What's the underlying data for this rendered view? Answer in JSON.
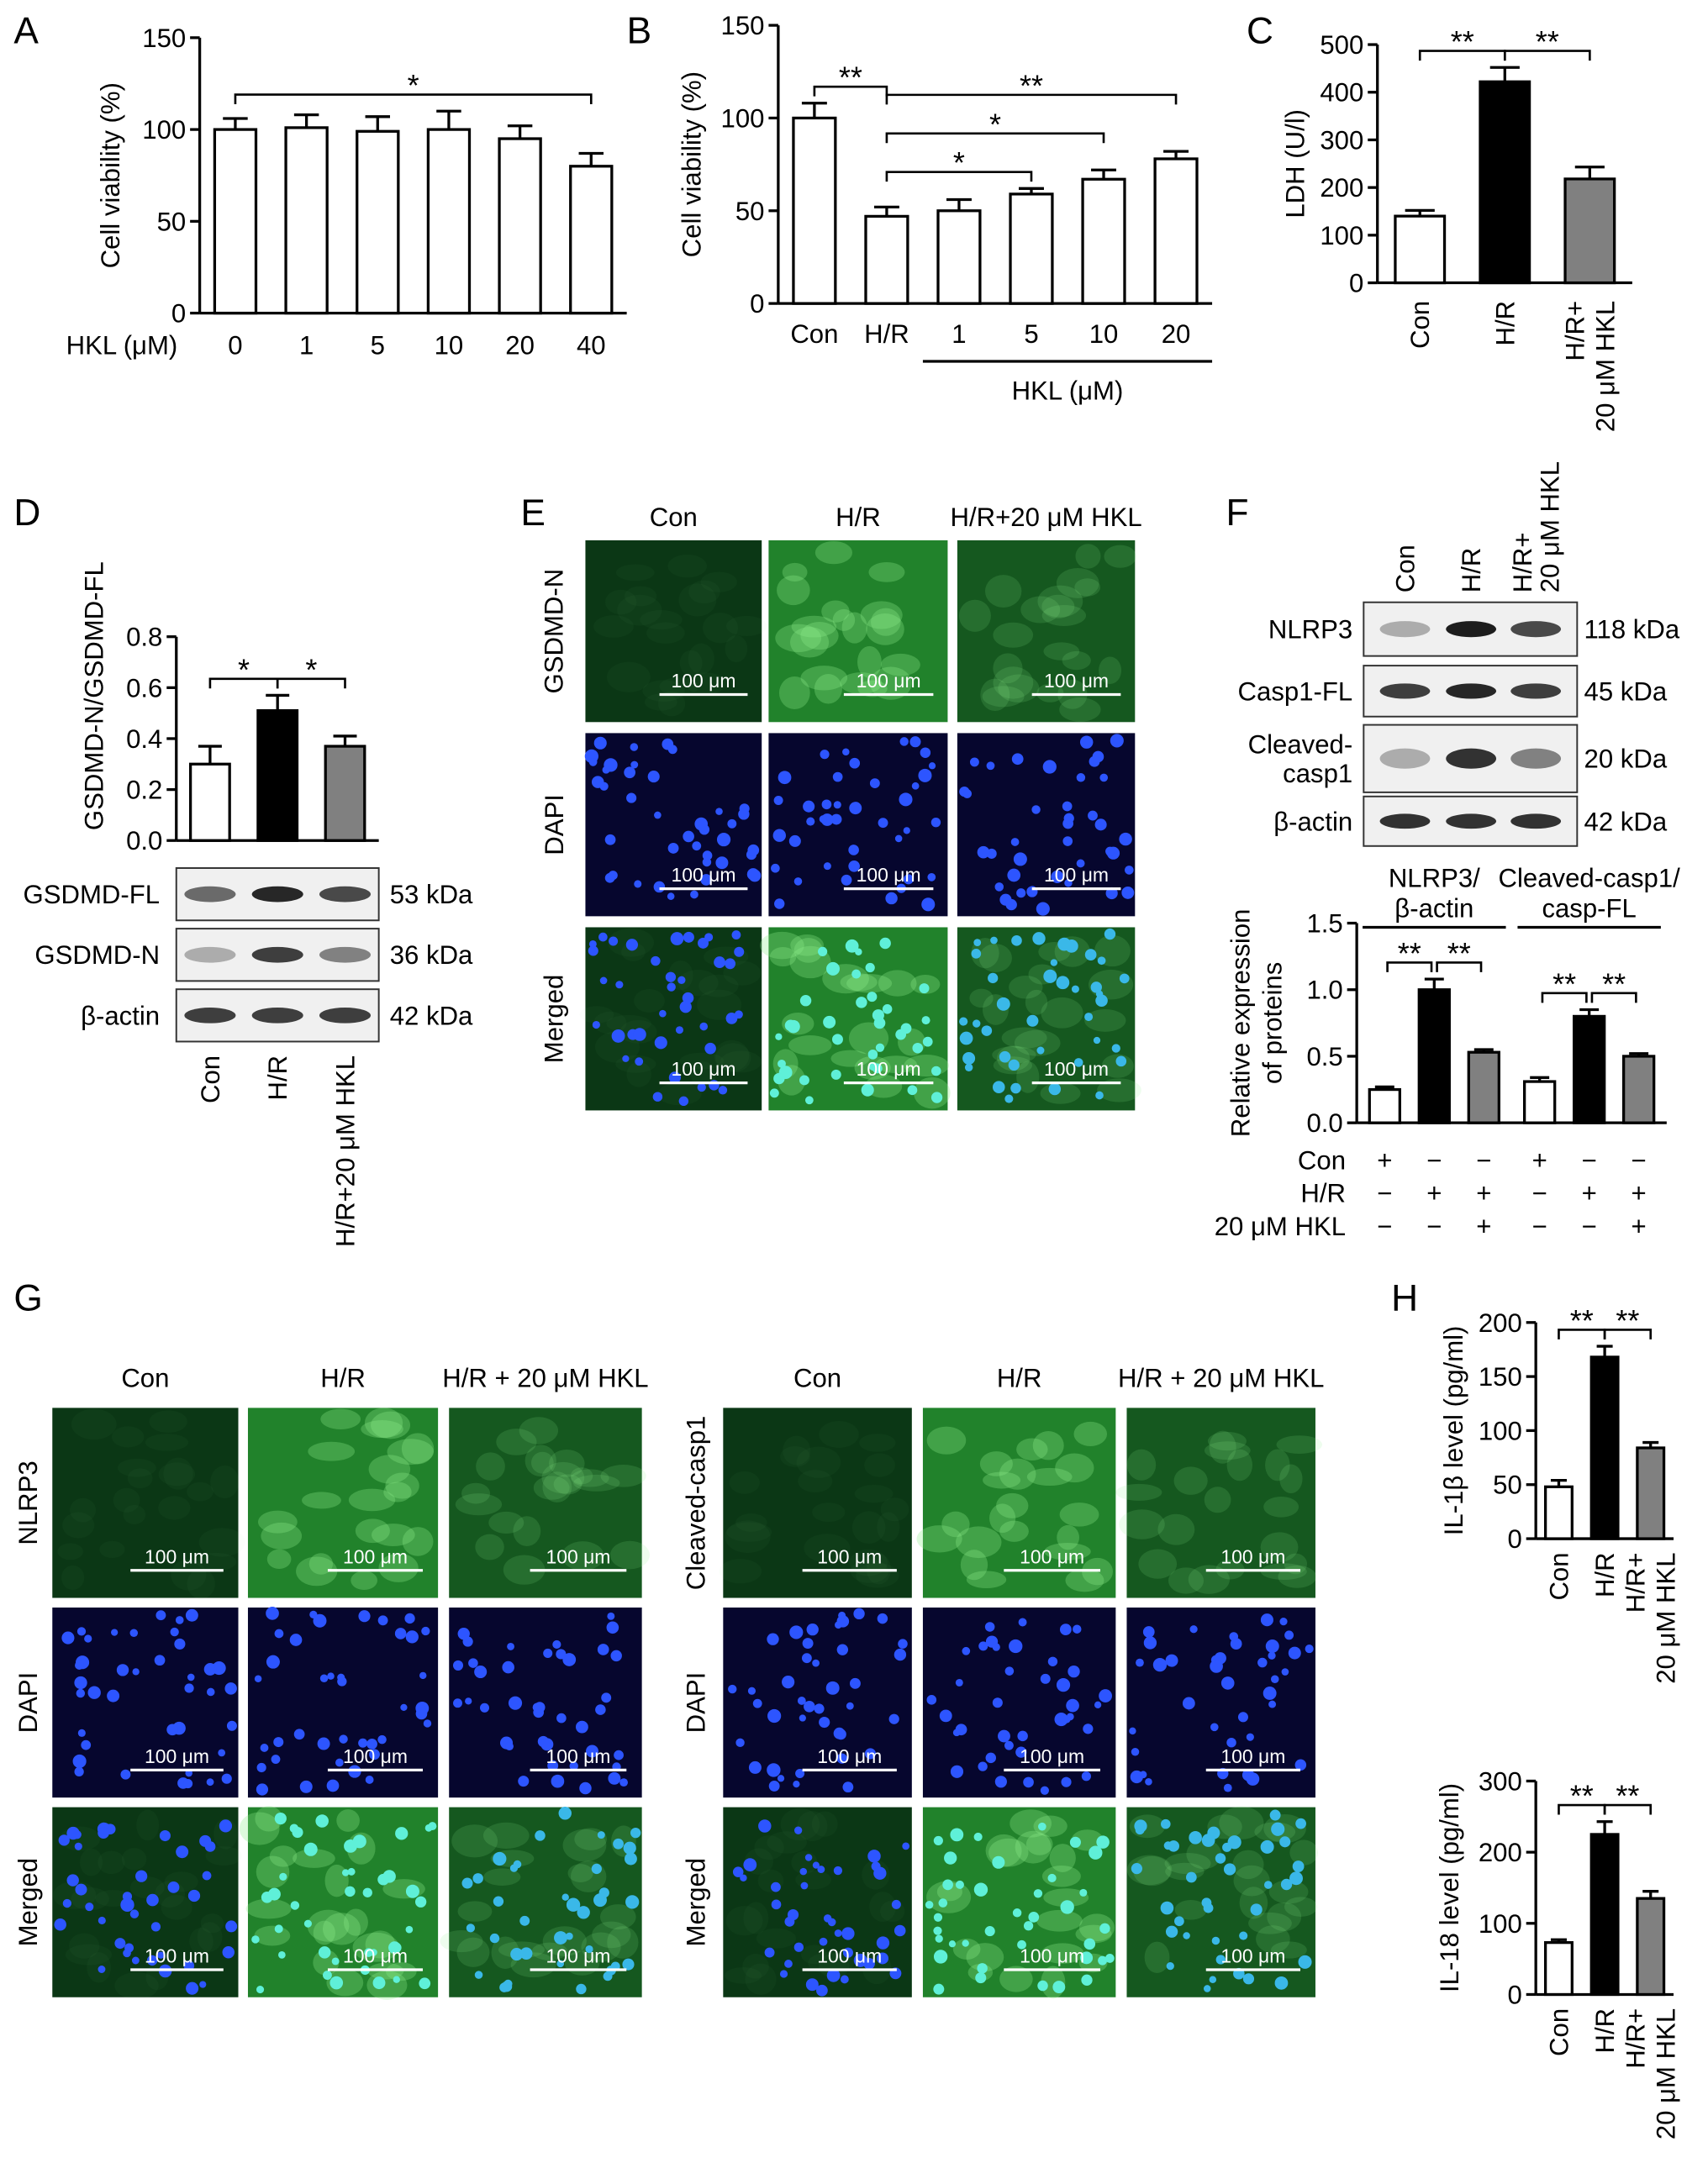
{
  "chart_data": [
    {
      "panel": "A",
      "type": "bar",
      "y_label": "Cell viability (%)",
      "x_label": "HKL (μM)",
      "categories": [
        "0",
        "1",
        "5",
        "10",
        "20",
        "40"
      ],
      "values": [
        100,
        101,
        99,
        100,
        95,
        80
      ],
      "errors": [
        6,
        7,
        8,
        10,
        7,
        7
      ],
      "color": "#ffffff",
      "ylim": [
        0,
        150
      ],
      "yticks": [
        0,
        50,
        100,
        150
      ],
      "significance": [
        {
          "between": [
            "0",
            "40"
          ],
          "label": "*"
        }
      ]
    },
    {
      "panel": "B",
      "type": "bar",
      "y_label": "Cell viability (%)",
      "categories": [
        "Con",
        "H/R",
        "1",
        "5",
        "10",
        "20"
      ],
      "group_label": {
        "text": "HKL (μM)",
        "from": "1",
        "to": "20"
      },
      "values": [
        100,
        47,
        50,
        59,
        67,
        78
      ],
      "errors": [
        8,
        5,
        6,
        3,
        5,
        4
      ],
      "color": "#ffffff",
      "ylim": [
        0,
        150
      ],
      "yticks": [
        0,
        50,
        100,
        150
      ],
      "significance": [
        {
          "between": [
            "Con",
            "H/R"
          ],
          "label": "**"
        },
        {
          "between": [
            "H/R",
            "5"
          ],
          "label": "*"
        },
        {
          "between": [
            "H/R",
            "10"
          ],
          "label": "*"
        },
        {
          "between": [
            "H/R",
            "20"
          ],
          "label": "**"
        }
      ]
    },
    {
      "panel": "C",
      "type": "bar",
      "y_label": "LDH (U/l)",
      "categories": [
        "Con",
        "H/R",
        "H/R+\n20 μM HKL"
      ],
      "values": [
        140,
        422,
        218
      ],
      "errors": [
        12,
        30,
        25
      ],
      "colors": [
        "#ffffff",
        "#000000",
        "#808080"
      ],
      "ylim": [
        0,
        500
      ],
      "yticks": [
        0,
        100,
        200,
        300,
        400,
        500
      ],
      "significance": [
        {
          "between": [
            "Con",
            "H/R"
          ],
          "label": "**"
        },
        {
          "between": [
            "H/R",
            "H/R+\n20 μM HKL"
          ],
          "label": "**"
        }
      ]
    },
    {
      "panel": "D",
      "type": "bar",
      "y_label": "GSDMD-N/GSDMD-FL",
      "categories": [
        "Con",
        "H/R",
        "H/R+20 μM HKL"
      ],
      "values": [
        0.3,
        0.51,
        0.37
      ],
      "errors": [
        0.07,
        0.06,
        0.04
      ],
      "colors": [
        "#ffffff",
        "#000000",
        "#808080"
      ],
      "ylim": [
        0,
        0.8
      ],
      "yticks": [
        {
          "value": 0,
          "label": "0.0"
        },
        0.2,
        0.4,
        0.6,
        0.8
      ],
      "significance": [
        {
          "between": [
            "Con",
            "H/R"
          ],
          "label": "*"
        },
        {
          "between": [
            "H/R",
            "H/R+20 μM HKL"
          ],
          "label": "*"
        }
      ],
      "blot": {
        "rows": [
          {
            "label": "GSDMD-FL",
            "size": "53 kDa"
          },
          {
            "label": "GSDMD-N",
            "size": "36 kDa"
          },
          {
            "label": "β-actin",
            "size": "42 kDa"
          }
        ]
      }
    },
    {
      "panel": "F",
      "type": "grouped_bar",
      "y_label": "Relative expression\nof proteins",
      "groups": [
        "NLRP3/\nβ-actin",
        "Cleaved-casp1/\ncasp-FL"
      ],
      "series": [
        {
          "color": "#ffffff",
          "values": [
            0.25,
            0.31
          ],
          "errors": [
            0.02,
            0.03
          ]
        },
        {
          "color": "#000000",
          "values": [
            1.0,
            0.8
          ],
          "errors": [
            0.08,
            0.05
          ]
        },
        {
          "color": "#808080",
          "values": [
            0.53,
            0.5
          ],
          "errors": [
            0.02,
            0.02
          ]
        }
      ],
      "ylim": [
        0,
        1.5
      ],
      "yticks": [
        {
          "value": 0,
          "label": "0.0"
        },
        0.5,
        {
          "value": 1,
          "label": "1.0"
        },
        1.5
      ],
      "significance": [
        [
          "**",
          "**"
        ],
        [
          "**",
          "**"
        ]
      ],
      "treatments": [
        {
          "label": "Con",
          "signs": [
            "+",
            "−",
            "−",
            "+",
            "−",
            "−"
          ]
        },
        {
          "label": "H/R",
          "signs": [
            "−",
            "+",
            "+",
            "−",
            "+",
            "+"
          ]
        },
        {
          "label": "20 μM HKL",
          "signs": [
            "−",
            "−",
            "+",
            "−",
            "−",
            "+"
          ]
        }
      ],
      "blot": {
        "columns": [
          "Con",
          "H/R",
          "H/R+\n20 μM HKL"
        ],
        "rows": [
          {
            "label": "NLRP3",
            "size": "118 kDa"
          },
          {
            "label": "Casp1-FL",
            "size": "45 kDa"
          },
          {
            "label": "Cleaved-\ncasp1",
            "size": "20 kDa"
          },
          {
            "label": "β-actin",
            "size": "42 kDa"
          }
        ]
      }
    },
    {
      "panel": "H",
      "type": "bar",
      "y_label": "IL-1β level (pg/ml)",
      "categories": [
        "Con",
        "H/R",
        "H/R+\n20 μM HKL"
      ],
      "values": [
        48,
        168,
        84
      ],
      "errors": [
        6,
        10,
        5
      ],
      "colors": [
        "#ffffff",
        "#000000",
        "#808080"
      ],
      "ylim": [
        0,
        200
      ],
      "yticks": [
        0,
        50,
        100,
        150,
        200
      ],
      "significance": [
        {
          "between": [
            "Con",
            "H/R"
          ],
          "label": "**"
        },
        {
          "between": [
            "H/R",
            "H/R+\n20 μM HKL"
          ],
          "label": "**"
        }
      ]
    },
    {
      "type": "bar",
      "y_label": "IL-18 level (pg/ml)",
      "categories": [
        "Con",
        "H/R",
        "H/R+\n20 μM HKL"
      ],
      "values": [
        73,
        225,
        135
      ],
      "errors": [
        4,
        18,
        10
      ],
      "colors": [
        "#ffffff",
        "#000000",
        "#808080"
      ],
      "ylim": [
        0,
        300
      ],
      "yticks": [
        0,
        100,
        200,
        300
      ],
      "significance": [
        {
          "between": [
            "Con",
            "H/R"
          ],
          "label": "**"
        },
        {
          "between": [
            "H/R",
            "H/R+\n20 μM HKL"
          ],
          "label": "**"
        }
      ]
    }
  ],
  "micrographs": [
    {
      "panel": "E",
      "columns": [
        "Con",
        "H/R",
        "H/R+20 μM HKL"
      ],
      "rows": [
        "GSDMD-N",
        "DAPI",
        "Merged"
      ],
      "scale_bar": "100 μm"
    },
    {
      "panel": "G",
      "columns": [
        "Con",
        "H/R",
        "H/R + 20 μM HKL"
      ],
      "rows": [
        "NLRP3",
        "DAPI",
        "Merged"
      ],
      "scale_bar": "100 μm"
    },
    {
      "columns": [
        "Con",
        "H/R",
        "H/R + 20 μM HKL"
      ],
      "rows": [
        "Cleaved-casp1",
        "DAPI",
        "Merged"
      ],
      "scale_bar": "100 μm"
    }
  ]
}
